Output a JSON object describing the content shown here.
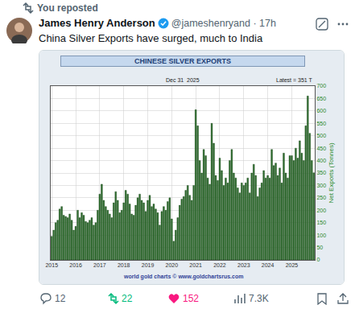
{
  "tweet": {
    "reposted": "You reposted",
    "name": "James Henry Anderson",
    "handle": "@jameshenryand · 17h",
    "text": "China Silver Exports have surged, much to India",
    "counts": {
      "replies": "12",
      "reposts": "22",
      "likes": "152",
      "views": "7.3K"
    }
  },
  "chart_data": {
    "type": "bar",
    "title": "CHINESE SILVER EXPORTS",
    "annotations": [
      "Dec 31  2025",
      "Latest = 351 T",
      "world gold charts © www.goldchartsrus.com"
    ],
    "y_label": "Net Exports (Tonnes)",
    "categories": [
      "2015",
      null,
      null,
      null,
      null,
      null,
      null,
      null,
      null,
      null,
      null,
      null,
      "2016",
      null,
      null,
      null,
      null,
      null,
      null,
      null,
      null,
      null,
      null,
      null,
      "2017",
      null,
      null,
      null,
      null,
      null,
      null,
      null,
      null,
      null,
      null,
      null,
      "2018",
      null,
      null,
      null,
      null,
      null,
      null,
      null,
      null,
      null,
      null,
      null,
      "2019",
      null,
      null,
      null,
      null,
      null,
      null,
      null,
      null,
      null,
      null,
      null,
      "2020",
      null,
      null,
      null,
      null,
      null,
      null,
      null,
      null,
      null,
      null,
      null,
      "2021",
      null,
      null,
      null,
      null,
      null,
      null,
      null,
      null,
      null,
      null,
      null,
      "2022",
      null,
      null,
      null,
      null,
      null,
      null,
      null,
      null,
      null,
      null,
      null,
      "2023",
      null,
      null,
      null,
      null,
      null,
      null,
      null,
      null,
      null,
      null,
      null,
      "2024",
      null,
      null,
      null,
      null,
      null,
      null,
      null,
      null,
      null,
      null,
      null,
      "2025",
      null,
      null,
      null,
      null,
      null,
      null,
      null,
      null,
      null,
      null,
      null
    ],
    "values": [
      95,
      120,
      150,
      160,
      205,
      215,
      180,
      175,
      170,
      185,
      160,
      120,
      135,
      200,
      170,
      190,
      180,
      155,
      150,
      160,
      170,
      140,
      150,
      200,
      265,
      305,
      240,
      215,
      200,
      185,
      170,
      230,
      275,
      240,
      190,
      200,
      230,
      280,
      265,
      225,
      185,
      180,
      220,
      250,
      265,
      240,
      230,
      195,
      240,
      260,
      215,
      225,
      205,
      190,
      140,
      195,
      215,
      200,
      235,
      250,
      165,
      75,
      120,
      170,
      220,
      245,
      255,
      280,
      300,
      260,
      240,
      300,
      605,
      540,
      400,
      350,
      445,
      420,
      330,
      305,
      550,
      470,
      340,
      320,
      410,
      360,
      300,
      330,
      310,
      400,
      445,
      350,
      330,
      290,
      270,
      310,
      300,
      310,
      330,
      270,
      350,
      385,
      340,
      255,
      290,
      310,
      360,
      330,
      340,
      330,
      445,
      380,
      390,
      340,
      370,
      310,
      430,
      350,
      330,
      420,
      420,
      400,
      450,
      410,
      480,
      430,
      400,
      540,
      660,
      510,
      400,
      351
    ],
    "color": "#2e6e2e",
    "ylim": [
      0,
      700
    ],
    "yticks": [
      0,
      50,
      100,
      150,
      200,
      250,
      300,
      350,
      400,
      450,
      500,
      550,
      600,
      650,
      700
    ],
    "grid": true
  }
}
